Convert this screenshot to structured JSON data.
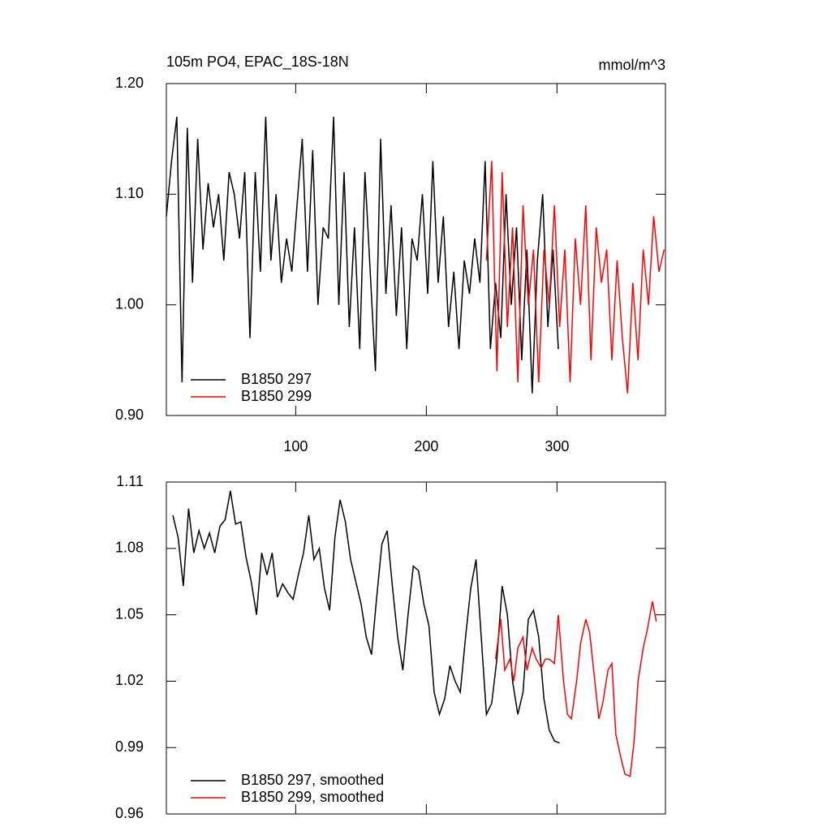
{
  "chart_data": [
    {
      "type": "line",
      "title": "105m PO4, EPAC_18S-18N",
      "units": "mmol/m^3",
      "xlim": [
        1,
        383
      ],
      "xticks": [
        100,
        200,
        300
      ],
      "show_xtick_labels": true,
      "ylim": [
        0.9,
        1.2
      ],
      "yticks": [
        {
          "value": 0.9,
          "label": "0.90"
        },
        {
          "value": 1.0,
          "label": "1.00"
        },
        {
          "value": 1.1,
          "label": "1.10"
        },
        {
          "value": 1.2,
          "label": "1.20"
        }
      ],
      "series": [
        {
          "name": "B1850 297",
          "color": "#000000",
          "x": [
            1,
            5,
            9,
            13,
            17,
            21,
            25,
            29,
            33,
            37,
            41,
            45,
            49,
            53,
            57,
            61,
            65,
            69,
            73,
            77,
            81,
            85,
            89,
            93,
            97,
            101,
            105,
            109,
            113,
            117,
            121,
            125,
            129,
            133,
            137,
            141,
            145,
            149,
            153,
            157,
            161,
            165,
            169,
            173,
            177,
            181,
            185,
            189,
            193,
            197,
            201,
            205,
            209,
            213,
            217,
            221,
            225,
            229,
            233,
            237,
            241,
            245,
            249,
            253,
            257,
            261,
            265,
            269,
            273,
            277,
            281,
            285,
            289,
            293,
            297,
            301
          ],
          "values": [
            1.08,
            1.13,
            1.17,
            0.93,
            1.16,
            1.02,
            1.15,
            1.05,
            1.11,
            1.07,
            1.1,
            1.04,
            1.12,
            1.1,
            1.06,
            1.12,
            0.97,
            1.12,
            1.03,
            1.17,
            1.04,
            1.1,
            1.02,
            1.06,
            1.03,
            1.09,
            1.15,
            1.03,
            1.14,
            1.0,
            1.07,
            1.06,
            1.17,
            1.0,
            1.12,
            0.98,
            1.07,
            0.96,
            1.12,
            1.03,
            0.94,
            1.15,
            1.01,
            1.09,
            0.99,
            1.07,
            0.96,
            1.06,
            1.04,
            1.1,
            1.01,
            1.13,
            1.02,
            1.08,
            0.98,
            1.03,
            0.96,
            1.04,
            1.01,
            1.06,
            1.02,
            1.13,
            0.96,
            1.02,
            0.97,
            1.1,
            1.0,
            1.07,
            0.95,
            1.05,
            0.92,
            1.04,
            1.1,
            0.98,
            1.05,
            0.96
          ]
        },
        {
          "name": "B1850 299",
          "color": "#ff0000",
          "x": [
            246,
            250,
            254,
            258,
            262,
            266,
            270,
            274,
            278,
            282,
            286,
            290,
            294,
            298,
            302,
            306,
            310,
            314,
            318,
            322,
            326,
            330,
            334,
            338,
            342,
            346,
            350,
            354,
            358,
            362,
            366,
            370,
            374,
            378,
            382
          ],
          "values": [
            1.04,
            1.13,
            0.94,
            1.12,
            0.98,
            1.07,
            0.93,
            1.09,
            1.0,
            1.05,
            0.93,
            1.05,
            1.0,
            1.09,
            0.98,
            1.05,
            0.93,
            1.06,
            1.0,
            1.09,
            0.95,
            1.07,
            1.02,
            1.05,
            0.95,
            1.04,
            0.97,
            0.92,
            1.02,
            0.95,
            1.05,
            1.0,
            1.08,
            1.03,
            1.05
          ]
        }
      ]
    },
    {
      "type": "line",
      "xlim": [
        1,
        383
      ],
      "xticks": [
        100,
        200,
        300
      ],
      "show_xtick_labels": false,
      "ylim": [
        0.96,
        1.11
      ],
      "yticks": [
        {
          "value": 0.96,
          "label": "0.96"
        },
        {
          "value": 0.99,
          "label": "0.99"
        },
        {
          "value": 1.02,
          "label": "1.02"
        },
        {
          "value": 1.05,
          "label": "1.05"
        },
        {
          "value": 1.08,
          "label": "1.08"
        },
        {
          "value": 1.11,
          "label": "1.11"
        }
      ],
      "series": [
        {
          "name": "B1850 297, smoothed",
          "color": "#000000",
          "x": [
            6,
            10,
            14,
            18,
            22,
            26,
            30,
            34,
            38,
            42,
            46,
            50,
            54,
            58,
            62,
            66,
            70,
            74,
            78,
            82,
            86,
            90,
            94,
            98,
            102,
            106,
            110,
            114,
            118,
            122,
            126,
            130,
            134,
            138,
            142,
            146,
            150,
            154,
            158,
            162,
            166,
            170,
            174,
            178,
            182,
            186,
            190,
            194,
            198,
            202,
            206,
            210,
            214,
            218,
            222,
            226,
            230,
            234,
            238,
            242,
            246,
            250,
            254,
            258,
            262,
            266,
            270,
            274,
            278,
            282,
            286,
            290,
            294,
            298,
            302
          ],
          "values": [
            1.095,
            1.085,
            1.063,
            1.098,
            1.078,
            1.088,
            1.08,
            1.087,
            1.078,
            1.09,
            1.093,
            1.106,
            1.091,
            1.092,
            1.076,
            1.065,
            1.05,
            1.078,
            1.068,
            1.078,
            1.058,
            1.064,
            1.06,
            1.057,
            1.068,
            1.078,
            1.095,
            1.075,
            1.08,
            1.062,
            1.052,
            1.085,
            1.102,
            1.092,
            1.075,
            1.065,
            1.055,
            1.04,
            1.032,
            1.058,
            1.082,
            1.088,
            1.063,
            1.04,
            1.025,
            1.05,
            1.072,
            1.07,
            1.055,
            1.045,
            1.015,
            1.005,
            1.012,
            1.027,
            1.02,
            1.015,
            1.04,
            1.062,
            1.075,
            1.04,
            1.005,
            1.01,
            1.03,
            1.063,
            1.05,
            1.02,
            1.005,
            1.015,
            1.048,
            1.052,
            1.04,
            1.012,
            0.998,
            0.993,
            0.992
          ]
        },
        {
          "name": "B1850 299, smoothed",
          "color": "#ff0000",
          "x": [
            253,
            257,
            260,
            264,
            267,
            270,
            274,
            277,
            281,
            284,
            288,
            291,
            294,
            298,
            301,
            305,
            308,
            311,
            315,
            318,
            322,
            325,
            328,
            332,
            335,
            339,
            342,
            345,
            349,
            352,
            356,
            359,
            362,
            366,
            369,
            373,
            376
          ],
          "values": [
            1.03,
            1.048,
            1.025,
            1.03,
            1.02,
            1.035,
            1.04,
            1.025,
            1.035,
            1.03,
            1.026,
            1.03,
            1.03,
            1.028,
            1.05,
            1.02,
            1.005,
            1.003,
            1.02,
            1.037,
            1.048,
            1.042,
            1.025,
            1.003,
            1.01,
            1.025,
            1.028,
            0.996,
            0.985,
            0.978,
            0.977,
            0.993,
            1.02,
            1.035,
            1.043,
            1.056,
            1.047
          ]
        }
      ]
    }
  ]
}
